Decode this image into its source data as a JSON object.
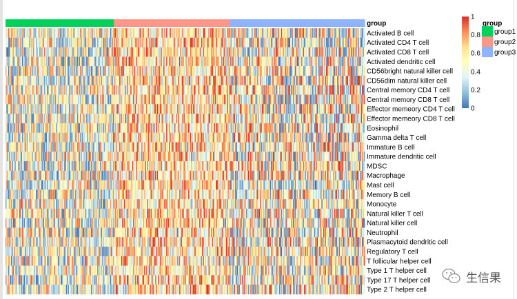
{
  "chart_data": {
    "type": "heatmap",
    "annotation_title": "group",
    "groups": [
      {
        "name": "group1",
        "color": "#00d25a",
        "columns": 118
      },
      {
        "name": "group2",
        "color": "#ff968a",
        "columns": 126
      },
      {
        "name": "group3",
        "color": "#8fb4ff",
        "columns": 147
      }
    ],
    "rows": [
      "Activated B cell",
      "Activated CD4 T cell",
      "Activated CD8 T cell",
      "Activated dendritic cell",
      "CD56bright natural killer cell",
      "CD56dim natural killer cell",
      "Central memory CD4 T cell",
      "Central memory CD8 T cell",
      "Effector memeory CD4 T cell",
      "Effector memeory CD8 T cell",
      "Eosinophil",
      "Gamma delta T cell",
      "Immature  B cell",
      "Immature dendritic cell",
      "MDSC",
      "Macrophage",
      "Mast cell",
      "Memory B cell",
      "Monocyte",
      "Natural killer T cell",
      "Natural killer cell",
      "Neutrophil",
      "Plasmacytoid dendritic cell",
      "Regulatory T cell",
      "T follicular helper cell",
      "Type 1 T helper cell",
      "Type 17 T helper cell",
      "Type 2 T helper cell"
    ],
    "value_range": [
      0,
      1
    ],
    "colorbar_ticks": [
      "0",
      "0.2",
      "0.4",
      "0.6",
      "0.8",
      "1"
    ],
    "colorscale": [
      "#4575b4",
      "#91bfdb",
      "#e0f3f8",
      "#ffffbf",
      "#fee090",
      "#fc8d59",
      "#d73027"
    ],
    "legend_title": "group"
  },
  "watermark": "生信果"
}
